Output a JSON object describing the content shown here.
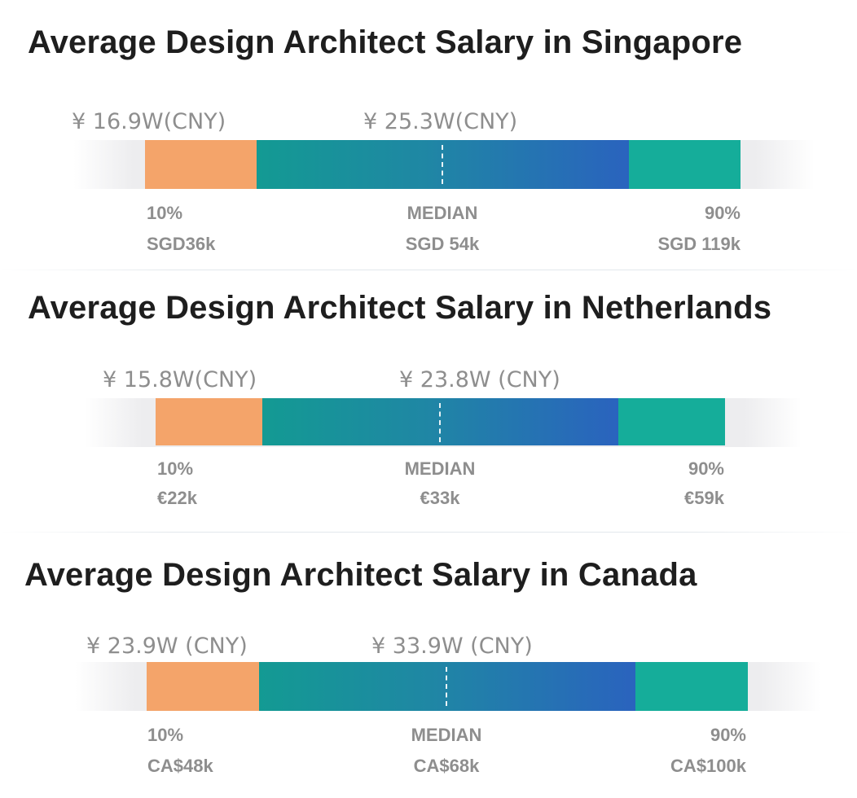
{
  "colors": {
    "low_segment": "#f4a46a",
    "mid_segment_start": "#139a93",
    "mid_segment_end": "#2a63be",
    "high_segment": "#15ad9a",
    "title_text": "#1e1e1e",
    "label_text": "#8e8e8e"
  },
  "chart_data": [
    {
      "type": "bar",
      "title": "Average Design Architect Salary in Singapore",
      "cny_low": "¥ 16.9W(CNY)",
      "cny_median": "¥ 25.3W(CNY)",
      "labels": [
        "10%",
        "MEDIAN",
        "90%"
      ],
      "values_text": [
        "SGD36k",
        "SGD 54k",
        "SGD 119k"
      ],
      "values": [
        36,
        54,
        119
      ],
      "currency": "SGD"
    },
    {
      "type": "bar",
      "title": "Average Design Architect Salary in Netherlands",
      "cny_low": "¥ 15.8W(CNY)",
      "cny_median": "¥ 23.8W (CNY)",
      "labels": [
        "10%",
        "MEDIAN",
        "90%"
      ],
      "values_text": [
        "€22k",
        "€33k",
        "€59k"
      ],
      "values": [
        22,
        33,
        59
      ],
      "currency": "EUR"
    },
    {
      "type": "bar",
      "title": "Average Design Architect Salary in Canada",
      "cny_low": "¥ 23.9W (CNY)",
      "cny_median": "¥ 33.9W (CNY)",
      "labels": [
        "10%",
        "MEDIAN",
        "90%"
      ],
      "values_text": [
        "CA$48k",
        "CA$68k",
        "CA$100k"
      ],
      "values": [
        48,
        68,
        100
      ],
      "currency": "CAD"
    }
  ]
}
